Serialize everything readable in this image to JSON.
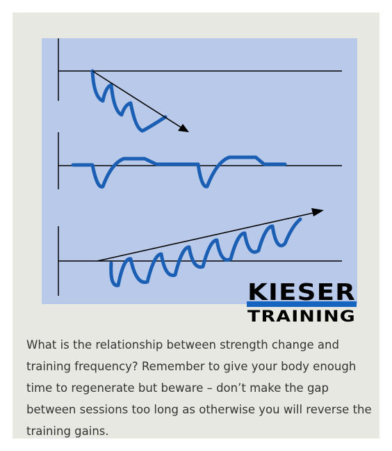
{
  "logo": {
    "line1": "KIESER",
    "line2": "TRAINING"
  },
  "caption": "What is the relationship between strength change and training frequency? Remember to give your body enough time to regenerate but beware – don’t make the gap between sessions too long as otherwise you will reverse the training gains."
}
